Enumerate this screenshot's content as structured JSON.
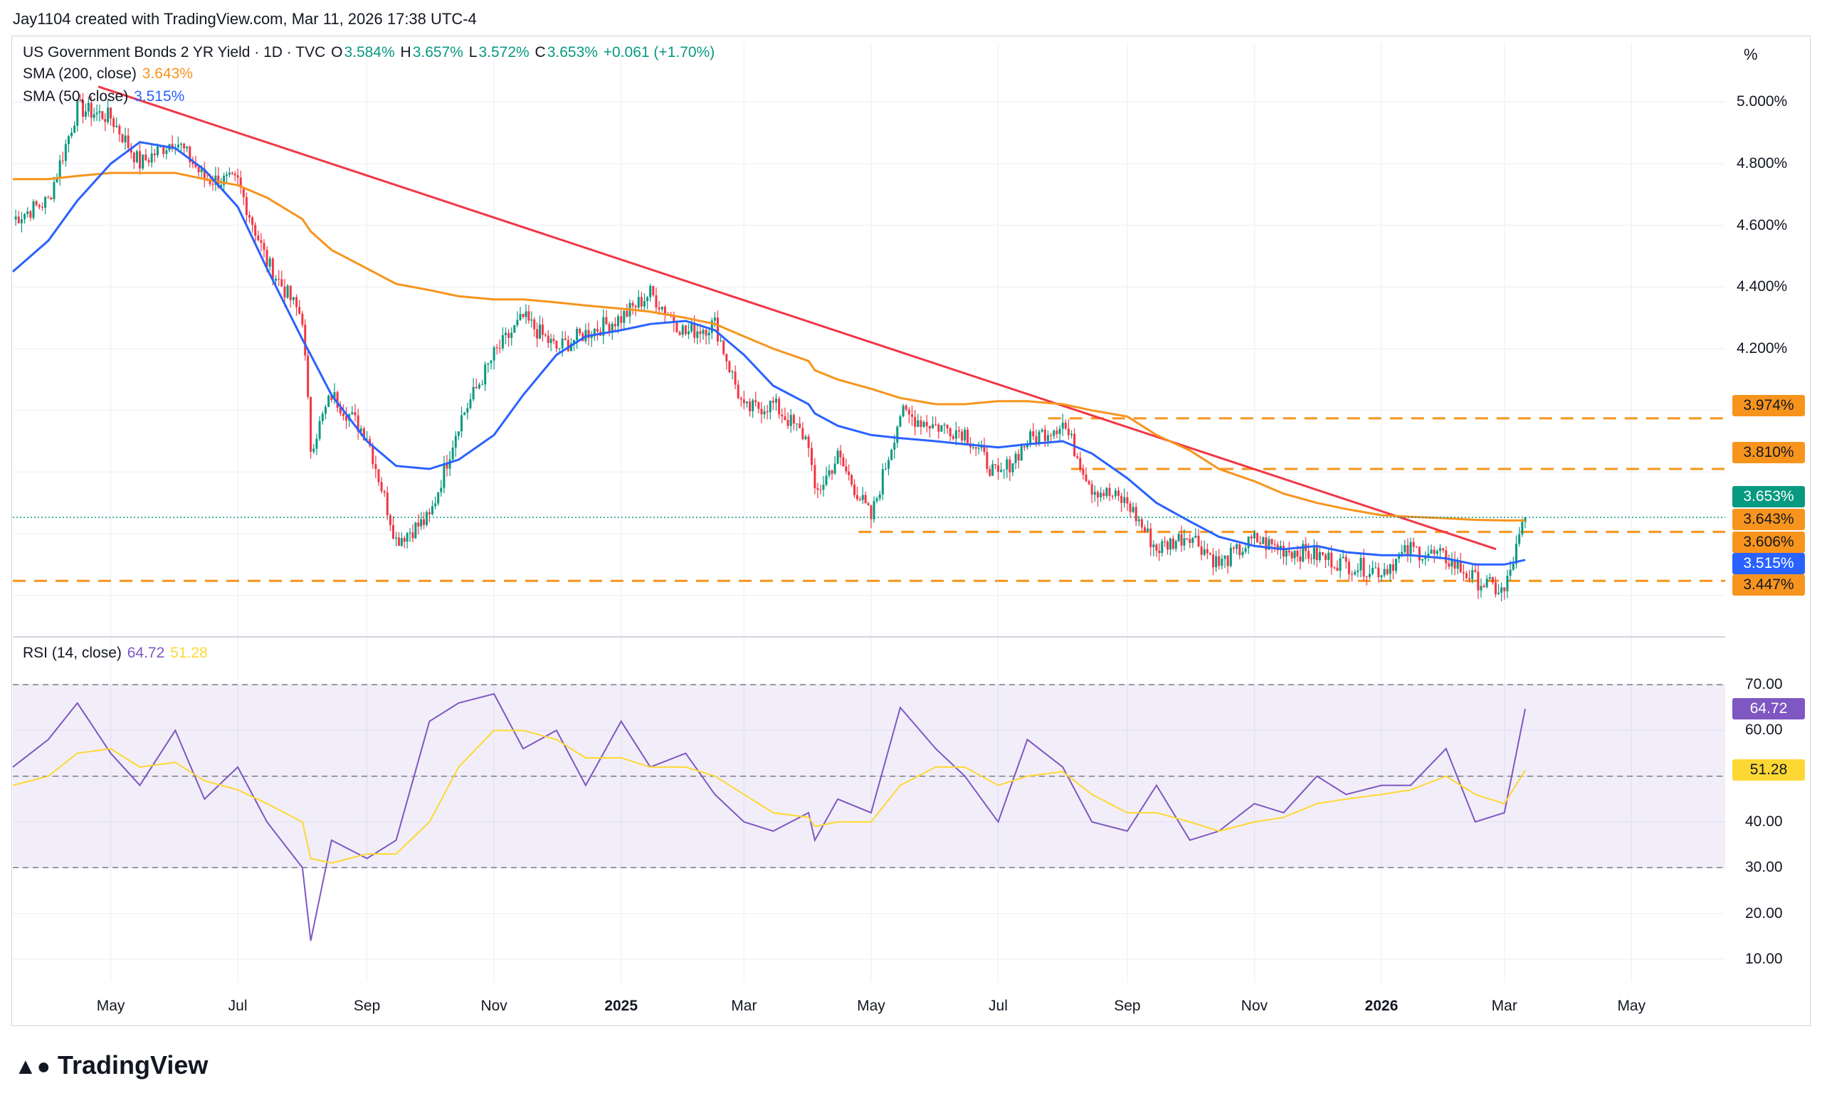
{
  "header": {
    "attribution": "Jay1104 created with TradingView.com, Mar 11, 2026 17:38 UTC-4"
  },
  "legend": {
    "symbol": "US Government Bonds 2 YR Yield · 1D · TVC",
    "o_label": "O",
    "o_value": "3.584%",
    "h_label": "H",
    "h_value": "3.657%",
    "l_label": "L",
    "l_value": "3.572%",
    "c_label": "C",
    "c_value": "3.653%",
    "change": "+0.061 (+1.70%)",
    "sma200_label": "SMA (200, close)",
    "sma200_value": "3.643%",
    "sma50_label": "SMA (50, close)",
    "sma50_value": "3.515%",
    "rsi_label": "RSI (14, close)",
    "rsi_value": "64.72",
    "rsi_ma_value": "51.28"
  },
  "price_axis": {
    "unit_label": "%",
    "ticks": [
      "5.000%",
      "4.800%",
      "4.600%",
      "4.400%",
      "4.200%"
    ],
    "labels": [
      {
        "text": "3.974%",
        "color": "#f7941d"
      },
      {
        "text": "3.810%",
        "color": "#f7941d"
      },
      {
        "text": "3.653%",
        "color": "#089981"
      },
      {
        "text": "3.643%",
        "color": "#f7941d"
      },
      {
        "text": "3.606%",
        "color": "#f7941d"
      },
      {
        "text": "3.515%",
        "color": "#2962ff"
      },
      {
        "text": "3.447%",
        "color": "#f7941d"
      }
    ]
  },
  "rsi_axis": {
    "ticks": [
      "70.00",
      "60.00",
      "40.00",
      "30.00",
      "20.00",
      "10.00"
    ],
    "rsi_label": "64.72",
    "ma_label": "51.28"
  },
  "time_axis": [
    "May",
    "Jul",
    "Sep",
    "Nov",
    "2025",
    "Mar",
    "May",
    "Jul",
    "Sep",
    "Nov",
    "2026",
    "Mar",
    "May"
  ],
  "brand": "TradingView",
  "colors": {
    "up": "#089981",
    "down": "#f23645",
    "sma200": "#f7941d",
    "sma50": "#2962ff",
    "trend": "#f23645",
    "rsi": "#7e57c2",
    "rsi_ma": "#fdd835"
  },
  "chart_data": {
    "type": "line",
    "title": "US Government Bonds 2 YR Yield · 1D · TVC",
    "ylabel": "%",
    "ylim": [
      3.3,
      5.1
    ],
    "x": [
      "2024-03-15",
      "2024-04-01",
      "2024-04-15",
      "2024-05-01",
      "2024-05-15",
      "2024-06-01",
      "2024-06-15",
      "2024-07-01",
      "2024-07-15",
      "2024-08-01",
      "2024-08-05",
      "2024-08-15",
      "2024-09-01",
      "2024-09-15",
      "2024-10-01",
      "2024-10-15",
      "2024-11-01",
      "2024-11-15",
      "2024-12-01",
      "2024-12-15",
      "2025-01-01",
      "2025-01-15",
      "2025-02-01",
      "2025-02-15",
      "2025-03-01",
      "2025-03-15",
      "2025-04-01",
      "2025-04-04",
      "2025-04-15",
      "2025-05-01",
      "2025-05-15",
      "2025-06-01",
      "2025-06-15",
      "2025-07-01",
      "2025-07-15",
      "2025-08-01",
      "2025-08-15",
      "2025-09-01",
      "2025-09-15",
      "2025-10-01",
      "2025-10-15",
      "2025-11-01",
      "2025-11-15",
      "2025-12-01",
      "2025-12-15",
      "2026-01-01",
      "2026-01-15",
      "2026-02-01",
      "2026-02-15",
      "2026-03-01",
      "2026-03-11"
    ],
    "series": [
      {
        "name": "US Government Bonds 2 YR Yield",
        "values": [
          4.62,
          4.68,
          4.98,
          4.95,
          4.8,
          4.88,
          4.75,
          4.74,
          4.48,
          4.3,
          3.88,
          4.05,
          3.92,
          3.58,
          3.65,
          3.96,
          4.18,
          4.3,
          4.2,
          4.25,
          4.3,
          4.38,
          4.25,
          4.28,
          4.0,
          4.02,
          3.9,
          3.72,
          3.85,
          3.65,
          3.99,
          3.95,
          3.93,
          3.78,
          3.9,
          3.96,
          3.75,
          3.7,
          3.55,
          3.6,
          3.5,
          3.58,
          3.55,
          3.53,
          3.5,
          3.48,
          3.55,
          3.52,
          3.45,
          3.41,
          3.653
        ]
      },
      {
        "name": "SMA (200, close)",
        "values": [
          4.75,
          4.75,
          4.76,
          4.77,
          4.77,
          4.77,
          4.75,
          4.73,
          4.69,
          4.62,
          4.58,
          4.52,
          4.46,
          4.41,
          4.39,
          4.37,
          4.36,
          4.36,
          4.35,
          4.34,
          4.33,
          4.32,
          4.3,
          4.28,
          4.24,
          4.2,
          4.16,
          4.13,
          4.1,
          4.07,
          4.04,
          4.02,
          4.02,
          4.03,
          4.03,
          4.02,
          4.0,
          3.98,
          3.92,
          3.87,
          3.81,
          3.77,
          3.73,
          3.7,
          3.68,
          3.66,
          3.655,
          3.65,
          3.645,
          3.643,
          3.643
        ]
      },
      {
        "name": "SMA (50, close)",
        "values": [
          4.45,
          4.55,
          4.68,
          4.8,
          4.87,
          4.85,
          4.78,
          4.66,
          4.46,
          4.23,
          4.18,
          4.05,
          3.9,
          3.82,
          3.81,
          3.84,
          3.92,
          4.05,
          4.18,
          4.24,
          4.26,
          4.28,
          4.29,
          4.26,
          4.18,
          4.08,
          4.02,
          3.99,
          3.95,
          3.92,
          3.91,
          3.9,
          3.89,
          3.88,
          3.89,
          3.9,
          3.86,
          3.78,
          3.7,
          3.64,
          3.59,
          3.56,
          3.55,
          3.56,
          3.54,
          3.53,
          3.53,
          3.52,
          3.5,
          3.5,
          3.515
        ]
      }
    ],
    "horizontal_levels": [
      3.974,
      3.81,
      3.606,
      3.447
    ],
    "trendline": [
      {
        "x": "2024-04-25",
        "y": 5.05
      },
      {
        "x": "2026-02-25",
        "y": 3.55
      }
    ],
    "rsi": {
      "name": "RSI (14, close)",
      "ylim": [
        5,
        75
      ],
      "bands": [
        30,
        50,
        70
      ],
      "values": [
        52,
        58,
        66,
        55,
        48,
        60,
        45,
        52,
        40,
        30,
        14,
        36,
        32,
        36,
        62,
        66,
        68,
        56,
        60,
        48,
        62,
        52,
        55,
        46,
        40,
        38,
        42,
        36,
        45,
        42,
        65,
        56,
        50,
        40,
        58,
        52,
        40,
        38,
        48,
        36,
        38,
        44,
        42,
        50,
        46,
        48,
        48,
        56,
        40,
        42,
        64.72
      ],
      "ma_values": [
        48,
        50,
        55,
        56,
        52,
        53,
        49,
        47,
        44,
        40,
        32,
        31,
        33,
        33,
        40,
        52,
        60,
        60,
        58,
        54,
        54,
        52,
        52,
        50,
        46,
        42,
        41,
        39,
        40,
        40,
        48,
        52,
        52,
        48,
        50,
        51,
        46,
        42,
        42,
        40,
        38,
        40,
        41,
        44,
        45,
        46,
        47,
        50,
        46,
        44,
        51.28
      ]
    }
  }
}
